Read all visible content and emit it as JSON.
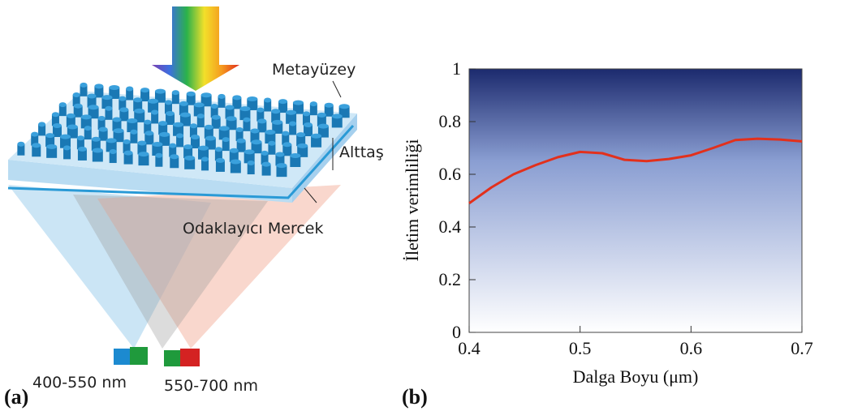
{
  "diagram": {
    "panel_label": "(a)",
    "labels": {
      "top": "Metayüzey",
      "substrate": "Alttaş",
      "lens": "Odaklayıcı Mercek",
      "left_range": "400-550 nm",
      "right_range": "550-700 nm"
    }
  },
  "chart_data": {
    "type": "line",
    "panel_label": "(b)",
    "x_label": "Dalga Boyu (μm)",
    "y_label": "İletim verimliliği",
    "x": [
      0.4,
      0.42,
      0.44,
      0.46,
      0.48,
      0.5,
      0.52,
      0.54,
      0.56,
      0.58,
      0.6,
      0.62,
      0.64,
      0.66,
      0.68,
      0.7
    ],
    "values": [
      0.49,
      0.55,
      0.6,
      0.635,
      0.665,
      0.685,
      0.68,
      0.655,
      0.65,
      0.658,
      0.672,
      0.7,
      0.73,
      0.735,
      0.732,
      0.725
    ],
    "color": "#e2301c",
    "xlim": [
      0.4,
      0.7
    ],
    "xticks": [
      0.4,
      0.5,
      0.6,
      0.7
    ],
    "ylim": [
      0,
      1
    ],
    "yticks": [
      0,
      0.2,
      0.4,
      0.6,
      0.8,
      1
    ]
  }
}
